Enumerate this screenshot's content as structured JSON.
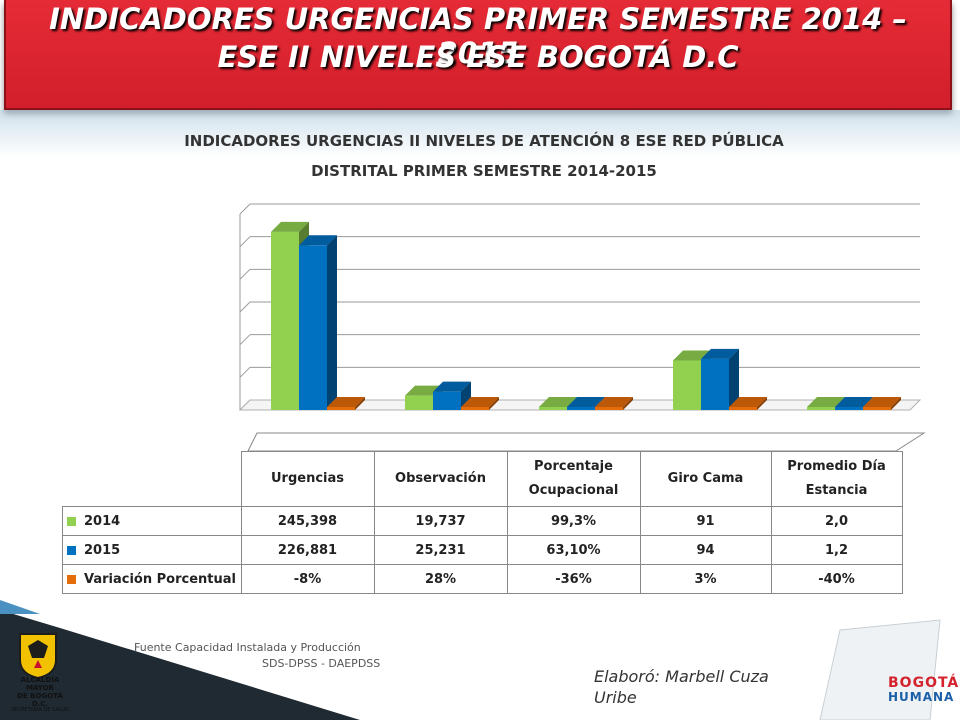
{
  "header": {
    "line1": "INDICADORES URGENCIAS PRIMER SEMESTRE 2014 – 2015",
    "line2": "ESE II NIVELES ESE BOGOTÁ D.C"
  },
  "chart_data": {
    "type": "bar",
    "title_line1": "INDICADORES URGENCIAS II NIVELES DE ATENCIÓN  8 ESE RED PÚBLICA",
    "title_line2": "DISTRITAL PRIMER SEMESTRE 2014-2015",
    "categories": [
      "Urgencias",
      "Observación",
      "Porcentaje Ocupacional",
      "Giro Cama",
      "Promedio Día Estancia"
    ],
    "category_labels": [
      [
        "Urgencias"
      ],
      [
        "Observación"
      ],
      [
        "Porcentaje",
        "Ocupacional"
      ],
      [
        "Giro Cama"
      ],
      [
        "Promedio Día",
        "Estancia"
      ]
    ],
    "series": [
      {
        "name": "2014",
        "color": "#92d050",
        "values": [
          245398,
          19737,
          99.3,
          91,
          2.0
        ],
        "labels": [
          "245,398",
          "19,737",
          "99,3%",
          "91",
          "2,0"
        ]
      },
      {
        "name": "2015",
        "color": "#0070c0",
        "values": [
          226881,
          25231,
          63.1,
          94,
          1.2
        ],
        "labels": [
          "226,881",
          "25,231",
          "63,10%",
          "94",
          "1,2"
        ]
      },
      {
        "name": "Variación Porcentual",
        "color": "#e46c0a",
        "values": [
          -8,
          28,
          -36,
          3,
          -40
        ],
        "labels": [
          "-8%",
          "28%",
          "-36%",
          "3%",
          "-40%"
        ]
      }
    ],
    "style": "3d-clustered-column",
    "gridlines": true,
    "legend": "data-table",
    "note": "bar heights use mixed units per category (as in the original); Giro Cama plotted at 91 and 94 on a thousands-scale axis"
  },
  "footer": {
    "source_line1": "Fuente Capacidad Instalada y Producción",
    "source_line2": "SDS-DPSS - DAEPDSS",
    "credit": "Elaboró: Marbell Cuza Uribe",
    "logo_left_line1": "ALCALDÍA MAYOR",
    "logo_left_line2": "DE BOGOTÁ D.C.",
    "logo_left_line3": "SECRETARÍA DE SALUD",
    "logo_right_line1": "BOGOTÁ",
    "logo_right_line2": "HUMANA"
  }
}
